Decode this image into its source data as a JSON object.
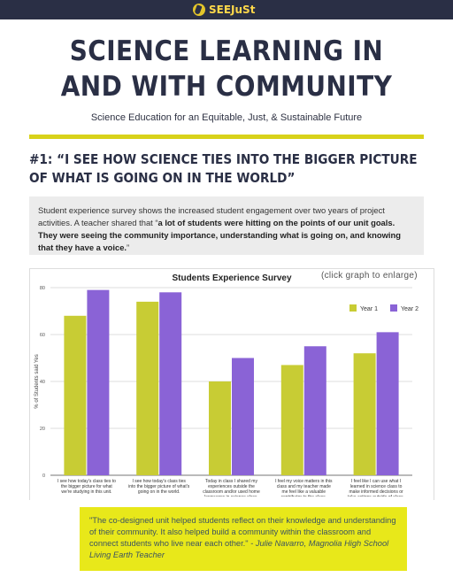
{
  "header": {
    "logo_text": "SEEJuSt",
    "logo_icon": "seejust-logo-icon"
  },
  "title": "SCIENCE LEARNING IN AND WITH COMMUNITY",
  "subtitle": "Science Education for an Equitable, Just, & Sustainable Future",
  "section_heading": "#1: “I SEE HOW SCIENCE TIES INTO THE BIGGER PICTURE OF WHAT IS GOING ON IN THE WORLD”",
  "info": {
    "text_before": "Student experience survey shows the increased student engagement over two years of project activities.  A teacher shared that “",
    "text_bold": "a lot of students were hitting on the points of our unit goals. They were seeing the community importance, understanding what is going on, and knowing that they have a voice.",
    "text_after": "”"
  },
  "enlarge_note": "(click graph to enlarge)",
  "chart_data": {
    "type": "bar",
    "title": "Students Experience Survey",
    "ylabel": "% of Students said Yes",
    "xlabel": "",
    "ylim": [
      0,
      80
    ],
    "yticks": [
      0,
      20,
      40,
      60,
      80
    ],
    "grid": true,
    "legend_position": "top-right",
    "categories": [
      [
        "I see how today's class ties to",
        "the bigger picture for what",
        "we're studying in this unit."
      ],
      [
        "I see how today's class ties",
        "into the bigger picture of what's",
        "going on in the world."
      ],
      [
        "Today in class I shared my",
        "experiences outside the",
        "classroom and/or used home",
        "languages in science class."
      ],
      [
        "I feel my voice matters in this",
        "class and my teacher made",
        "me feel like a valuable",
        "contributor to the class."
      ],
      [
        "I feel like I can use what I",
        "learned in science class to",
        "make informed decisions or",
        "take actions outside of class."
      ]
    ],
    "series": [
      {
        "name": "Year 1",
        "color": "#c8cc34",
        "values": [
          68,
          74,
          40,
          47,
          52
        ]
      },
      {
        "name": "Year 2",
        "color": "#8a63d6",
        "values": [
          79,
          78,
          50,
          55,
          61
        ]
      }
    ]
  },
  "quote": {
    "text": "\"The co-designed unit helped students reflect on their knowledge and understanding of their community. It also helped build a community within the classroom and connect students who live near each other.\"",
    "author": "- Julie Navarro, Magnolia High School Living Earth Teacher"
  }
}
